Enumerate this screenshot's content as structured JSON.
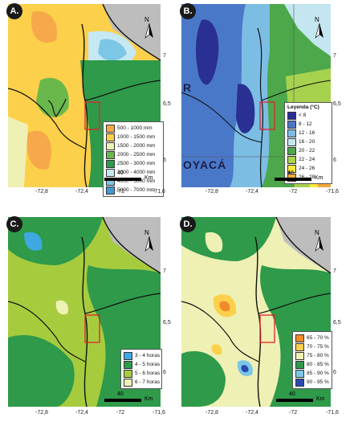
{
  "panels": [
    {
      "label": "A.",
      "legend": {
        "title": "",
        "items": [
          {
            "text": "500 - 1000 mm",
            "color": "#f7a84a"
          },
          {
            "text": "1000 - 1500 mm",
            "color": "#fcd04a"
          },
          {
            "text": "1500 - 2000 mm",
            "color": "#eef0b4"
          },
          {
            "text": "2000 - 2500 mm",
            "color": "#6ab84c"
          },
          {
            "text": "2500 - 3000 mm",
            "color": "#2e9a4a"
          },
          {
            "text": "3000 - 4000 mm",
            "color": "#c6e8f2"
          },
          {
            "text": "4000 - 5000 mm",
            "color": "#7cc6e6"
          },
          {
            "text": "5000 - 7000 mm",
            "color": "#3e9ad6"
          }
        ]
      },
      "scale_value": "40",
      "scale_unit": "Km",
      "north": "N"
    },
    {
      "label": "B.",
      "legend": {
        "title": "Leyenda (°C)",
        "items": [
          {
            "text": "< 8",
            "color": "#2a2f94"
          },
          {
            "text": "8 - 12",
            "color": "#4a78c8"
          },
          {
            "text": "12 - 16",
            "color": "#7cbde4"
          },
          {
            "text": "16 - 20",
            "color": "#c4e6f0"
          },
          {
            "text": "20 - 22",
            "color": "#4ca84a"
          },
          {
            "text": "22 - 24",
            "color": "#a6d24e"
          },
          {
            "text": "24 - 26",
            "color": "#f8e83a"
          },
          {
            "text": "26 - 28",
            "color": "#f4a83a"
          }
        ]
      },
      "place_name": "OYACÁ",
      "place_name_left": "R",
      "scale_value": "40",
      "scale_unit": "Km",
      "north": "N"
    },
    {
      "label": "C.",
      "legend": {
        "title": "",
        "items": [
          {
            "text": "3 - 4 horas",
            "color": "#3ea8e0"
          },
          {
            "text": "4 - 5 horas",
            "color": "#2e9a4a"
          },
          {
            "text": "5 - 6 horas",
            "color": "#a6cc3e"
          },
          {
            "text": "6 - 7 horas",
            "color": "#eef0b4"
          }
        ]
      },
      "scale_value": "40",
      "scale_unit": "Km",
      "north": "N"
    },
    {
      "label": "D.",
      "legend": {
        "title": "",
        "items": [
          {
            "text": "65 - 70 %",
            "color": "#f08a2a"
          },
          {
            "text": "70 - 75 %",
            "color": "#fcd04a"
          },
          {
            "text": "75 - 80 %",
            "color": "#eef0b4"
          },
          {
            "text": "80 - 85 %",
            "color": "#2e9a4a"
          },
          {
            "text": "85 - 90 %",
            "color": "#7cc6e6"
          },
          {
            "text": "90 - 95 %",
            "color": "#2a4ab0"
          }
        ]
      },
      "scale_value": "40",
      "scale_unit": "Km",
      "north": "N"
    }
  ],
  "x_ticks": [
    "-72,8",
    "-72,4",
    "-72",
    "-71,6"
  ],
  "y_ticks": [
    "7",
    "6,5",
    "6"
  ],
  "colors": {
    "boundary_line": "#111111",
    "study_box": "#e0242c",
    "outside_area": "#bdbdbd"
  }
}
